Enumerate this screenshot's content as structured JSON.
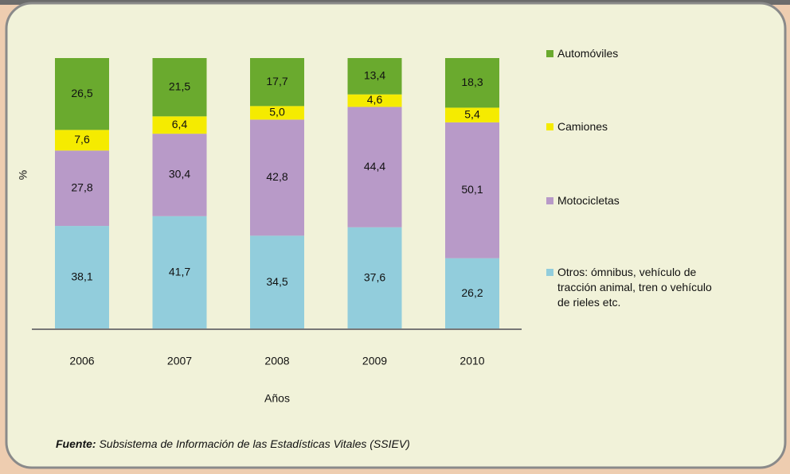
{
  "chart_data": {
    "type": "stacked_bar",
    "y_label": "%",
    "x_label": "Años",
    "categories": [
      "2006",
      "2007",
      "2008",
      "2009",
      "2010"
    ],
    "series": [
      {
        "name": "Otros: ómnibus, vehículo de tracción animal, tren o vehículo de rieles etc.",
        "color": "#92cddc",
        "values": [
          38.1,
          41.7,
          34.5,
          37.6,
          26.2
        ],
        "value_labels": [
          "38,1",
          "41,7",
          "34,5",
          "37,6",
          "26,2"
        ]
      },
      {
        "name": "Motocicletas",
        "color": "#b89ac8",
        "values": [
          27.8,
          30.4,
          42.8,
          44.4,
          50.1
        ],
        "value_labels": [
          "27,8",
          "30,4",
          "42,8",
          "44,4",
          "50,1"
        ]
      },
      {
        "name": "Camiones",
        "color": "#f5eb00",
        "values": [
          7.6,
          6.4,
          5.0,
          4.6,
          5.4
        ],
        "value_labels": [
          "7,6",
          "6,4",
          "5,0",
          "4,6",
          "5,4"
        ]
      },
      {
        "name": "Automóviles",
        "color": "#6aaa2e",
        "values": [
          26.5,
          21.5,
          17.7,
          13.4,
          18.3
        ],
        "value_labels": [
          "26,5",
          "21,5",
          "17,7",
          "13,4",
          "18,3"
        ]
      }
    ],
    "ylim": [
      0,
      100
    ],
    "source_label": "Fuente:",
    "source": "Subsistema de Información de las Estadísticas Vitales (SSIEV)"
  }
}
